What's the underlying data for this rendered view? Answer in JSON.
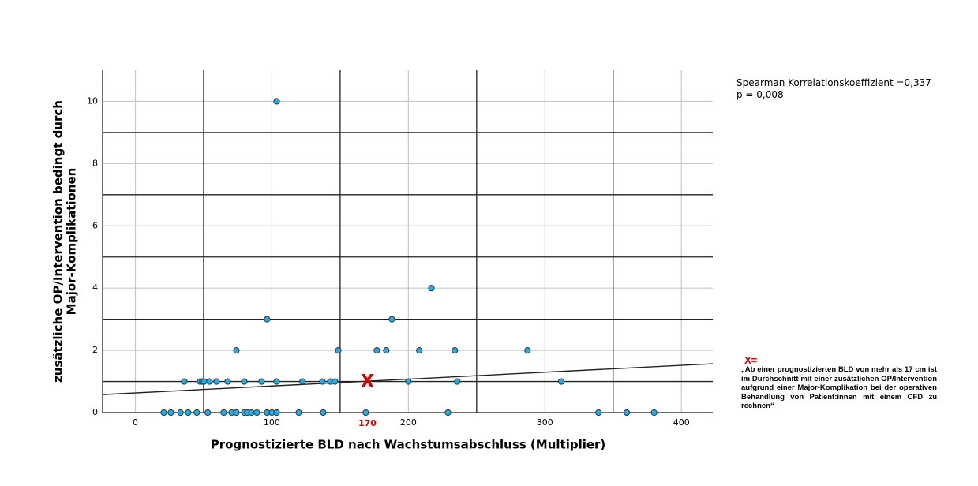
{
  "chart_data": {
    "type": "scatter",
    "xlabel": "Prognostizierte BLD nach Wachstumsabschluss (Multiplier)",
    "ylabel": [
      "zusätzliche OP/Intervention bedingt durch",
      "Major-Komplikationen"
    ],
    "xlim": [
      -24,
      423
    ],
    "ylim": [
      0,
      11
    ],
    "xticks": [
      0,
      100,
      200,
      300,
      400
    ],
    "yticks": [
      0,
      2,
      4,
      6,
      8,
      10
    ],
    "ref_x": [
      50,
      150,
      250,
      350
    ],
    "ref_y": [
      1,
      3,
      5,
      7,
      9
    ],
    "grid": true,
    "color": "#29abe2",
    "x": [
      20.8,
      26,
      33,
      38.7,
      45,
      53,
      64.7,
      70.5,
      74,
      79.8,
      82,
      85,
      89,
      96.5,
      100,
      103.5,
      119.7,
      137.6,
      168.8,
      229,
      339.3,
      360,
      380,
      35.8,
      47.4,
      49.1,
      50.3,
      54.3,
      59.5,
      67.6,
      79.8,
      92.5,
      103.5,
      122.5,
      137,
      142.8,
      146.2,
      200,
      235.8,
      312,
      74,
      148.6,
      176.9,
      183.8,
      208,
      234,
      287.3,
      96.5,
      187.9,
      216.8,
      103.5
    ],
    "values": [
      0,
      0,
      0,
      0,
      0,
      0,
      0,
      0,
      0,
      0,
      0,
      0,
      0,
      0,
      0,
      0,
      0,
      0,
      0,
      0,
      0,
      0,
      0,
      1,
      1,
      1,
      1,
      1,
      1,
      1,
      1,
      1,
      1,
      1,
      1,
      1,
      1,
      1,
      1,
      1,
      2,
      2,
      2,
      2,
      2,
      2,
      2,
      3,
      3,
      4,
      10
    ],
    "fit_line": {
      "x": [
        -24,
        423
      ],
      "y": [
        0.58,
        1.57
      ]
    },
    "marker": {
      "x": 170,
      "y": 1,
      "label": "X"
    },
    "annotations": {
      "stat": "Spearman Korrelationskoeffizient =0,337",
      "p": "p = 0,008",
      "note_title": "X=",
      "note": "„Ab einer prognostizierten BLD von mehr als 17 cm ist im Durchschnitt mit einer zusätzlichen OP/Intervention aufgrund einer Major-Komplikation bei der operativen Behandlung von Patient:innen mit einem CFD zu rechnen“"
    }
  }
}
